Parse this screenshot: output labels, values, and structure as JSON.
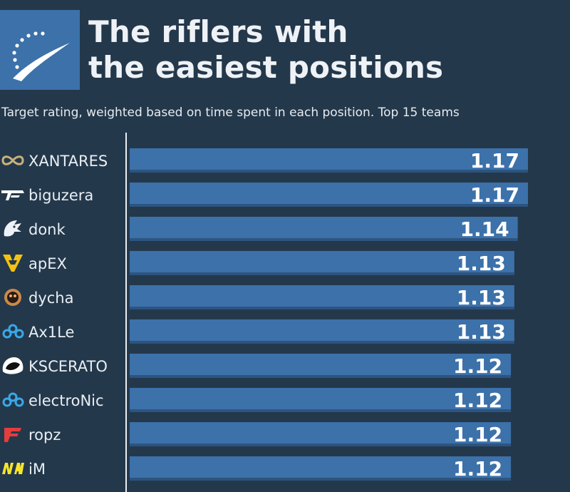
{
  "header": {
    "title_line1": "The riflers with",
    "title_line2_prefix": "the ",
    "title_line2_bold": "easiest",
    "title_line2_suffix": " positions",
    "subtitle": "Target rating, weighted based on time spent in each position. Top 15 teams"
  },
  "colors": {
    "background": "#24384b",
    "bar": "#3c71aa",
    "bar_shade": "#2d5480",
    "label_text": "#e8eef3",
    "value_text": "#ffffff",
    "logo_bg": "#3c71aa"
  },
  "chart_data": {
    "type": "bar",
    "orientation": "horizontal",
    "title": "The riflers with the easiest positions",
    "subtitle": "Target rating, weighted based on time spent in each position. Top 15 teams",
    "categories": [
      "XANTARES",
      "biguzera",
      "donk",
      "apEX",
      "dycha",
      "Ax1Le",
      "KSCERATO",
      "electroNic",
      "ropz",
      "iM"
    ],
    "values": [
      1.17,
      1.17,
      1.14,
      1.13,
      1.13,
      1.13,
      1.12,
      1.12,
      1.12,
      1.12
    ],
    "team_icons": [
      "infinity-icon",
      "pain-icon",
      "spirit-dragon-icon",
      "vitality-bee-icon",
      "ence-icon",
      "cloud9-icon",
      "furia-panther-icon",
      "cloud9-icon",
      "faze-icon",
      "navi-icon"
    ],
    "xlabel": "",
    "ylabel": "",
    "grid": false,
    "legend": "none"
  }
}
